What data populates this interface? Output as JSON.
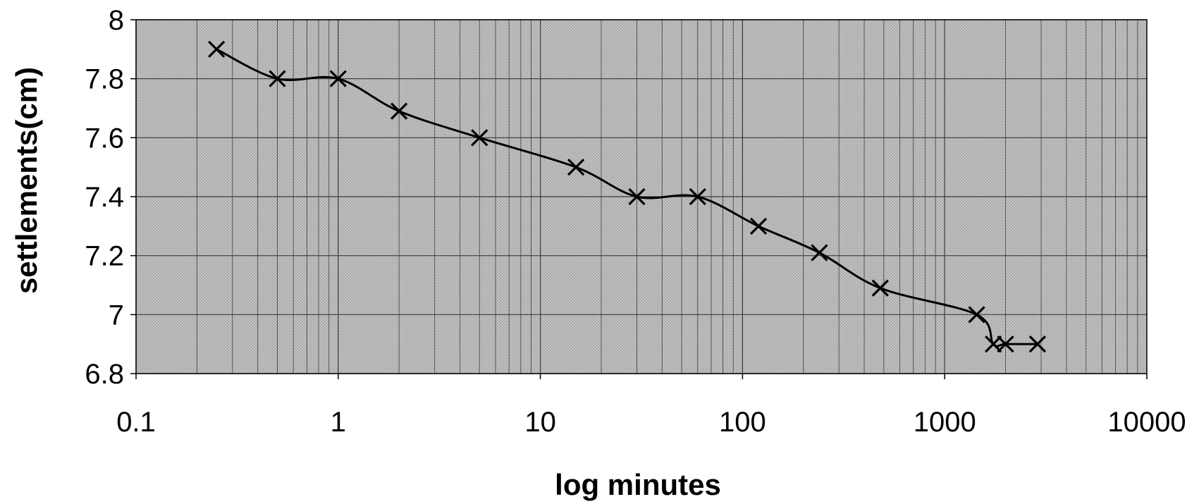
{
  "chart_data": {
    "type": "line",
    "xlabel": "log minutes",
    "ylabel": "settlements(cm)",
    "x_scale": "log",
    "xlim": [
      0.1,
      10000
    ],
    "ylim": [
      6.8,
      8
    ],
    "x_ticks": [
      0.1,
      1,
      10,
      100,
      1000,
      10000
    ],
    "x_tick_labels": [
      "0.1",
      "1",
      "10",
      "100",
      "1000",
      "10000"
    ],
    "y_ticks": [
      6.8,
      7,
      7.2,
      7.4,
      7.6,
      7.8,
      8
    ],
    "y_tick_labels": [
      "6.8",
      "7",
      "7.2",
      "7.4",
      "7.6",
      "7.8",
      "8"
    ],
    "grid": true,
    "legend": "none",
    "plot_background": "#b4b4b4",
    "series": [
      {
        "marker": "x",
        "color": "#000000",
        "x": [
          0.25,
          0.5,
          1,
          2,
          5,
          15,
          30,
          60,
          120,
          240,
          480,
          1440,
          1740,
          2000,
          2880
        ],
        "y": [
          7.9,
          7.8,
          7.8,
          7.69,
          7.6,
          7.5,
          7.4,
          7.4,
          7.3,
          7.21,
          7.09,
          7.0,
          6.9,
          6.9,
          6.9
        ]
      }
    ]
  }
}
